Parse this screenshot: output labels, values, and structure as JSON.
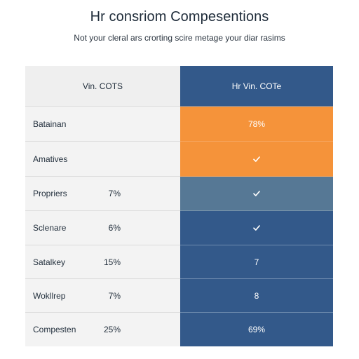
{
  "title": "Hr consriom Compesentions",
  "subtitle": "Not your cleral ars crorting scire metage your diar rasims",
  "table": {
    "header": {
      "left": "Vin. COTS",
      "right": "Hr Vin. COTe"
    },
    "rows": [
      {
        "label": "Batainan",
        "value": "",
        "right": "78%",
        "right_icon": "",
        "right_color": "#f5933a"
      },
      {
        "label": "Amatives",
        "value": "",
        "right": "",
        "right_icon": "check-icon",
        "right_color": "#f5933a"
      },
      {
        "label": "Propriers",
        "value": "7%",
        "right": "",
        "right_icon": "check-icon",
        "right_color": "#567895"
      },
      {
        "label": "Sclenare",
        "value": "6%",
        "right": "",
        "right_icon": "check-icon",
        "right_color": "#33598a"
      },
      {
        "label": "Satalkey",
        "value": "15%",
        "right": "7",
        "right_icon": "",
        "right_color": "#33598a"
      },
      {
        "label": "Wokllrep",
        "value": "7%",
        "right": "8",
        "right_icon": "",
        "right_color": "#33598a"
      },
      {
        "label": "Compesten",
        "value": "25%",
        "right": "69%",
        "right_icon": "",
        "right_color": "#33598a"
      }
    ]
  }
}
